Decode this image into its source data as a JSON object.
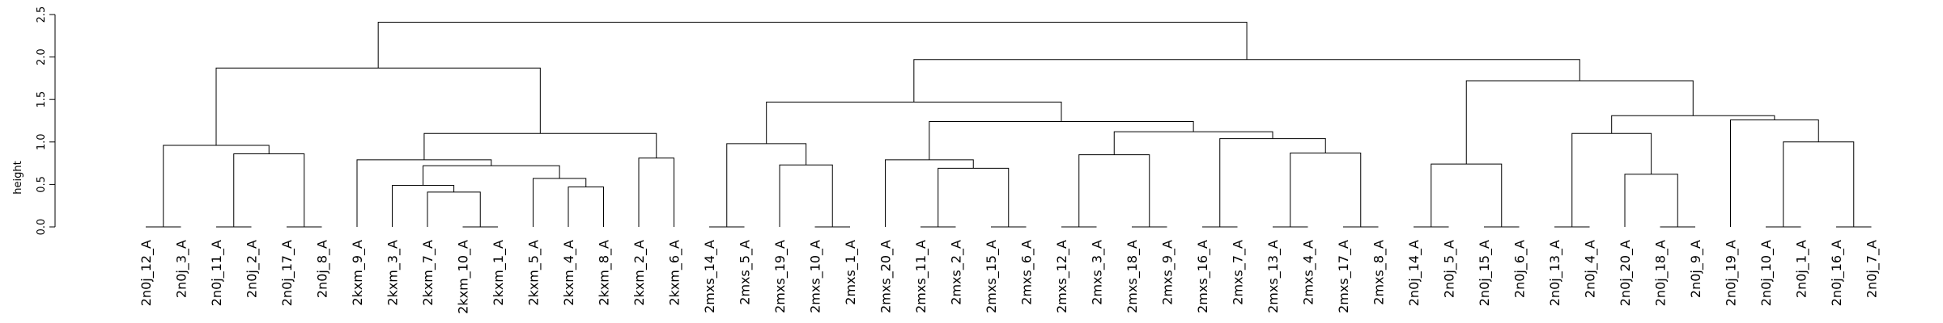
{
  "chart_data": {
    "type": "dendrogram",
    "title": "",
    "xlabel": "",
    "ylabel": "height",
    "ylim": [
      0,
      2.5
    ],
    "yticks": [
      0.0,
      0.5,
      1.0,
      1.5,
      2.0,
      2.5
    ],
    "ytick_labels": [
      "0.0",
      "0.5",
      "1.0",
      "1.5",
      "2.0",
      "2.5"
    ],
    "leaves": [
      "2n0j_12_A",
      "2n0j_3_A",
      "2n0j_11_A",
      "2n0j_2_A",
      "2n0j_17_A",
      "2n0j_8_A",
      "2kxm_9_A",
      "2kxm_3_A",
      "2kxm_7_A",
      "2kxm_10_A",
      "2kxm_1_A",
      "2kxm_5_A",
      "2kxm_4_A",
      "2kxm_8_A",
      "2kxm_2_A",
      "2kxm_6_A",
      "2mxs_14_A",
      "2mxs_5_A",
      "2mxs_19_A",
      "2mxs_10_A",
      "2mxs_1_A",
      "2mxs_20_A",
      "2mxs_11_A",
      "2mxs_2_A",
      "2mxs_15_A",
      "2mxs_6_A",
      "2mxs_12_A",
      "2mxs_3_A",
      "2mxs_18_A",
      "2mxs_9_A",
      "2mxs_16_A",
      "2mxs_7_A",
      "2mxs_13_A",
      "2mxs_4_A",
      "2mxs_17_A",
      "2mxs_8_A",
      "2n0j_14_A",
      "2n0j_5_A",
      "2n0j_15_A",
      "2n0j_6_A",
      "2n0j_13_A",
      "2n0j_4_A",
      "2n0j_20_A",
      "2n0j_18_A",
      "2n0j_9_A",
      "2n0j_19_A",
      "2n0j_10_A",
      "2n0j_1_A",
      "2n0j_16_A",
      "2n0j_7_A"
    ],
    "merges": [
      {
        "left": "2n0j_12_A",
        "right": "2n0j_3_A",
        "height": 0.0
      },
      {
        "left": "2n0j_11_A",
        "right": "2n0j_2_A",
        "height": 0.0
      },
      {
        "left": "2n0j_17_A",
        "right": "2n0j_8_A",
        "height": 0.0
      },
      {
        "left": "2kxm_10_A",
        "right": "2kxm_1_A",
        "height": 0.0
      },
      {
        "left": "2mxs_14_A",
        "right": "2mxs_5_A",
        "height": 0.0
      },
      {
        "left": "2mxs_10_A",
        "right": "2mxs_1_A",
        "height": 0.0
      },
      {
        "left": "2mxs_11_A",
        "right": "2mxs_2_A",
        "height": 0.0
      },
      {
        "left": "2mxs_15_A",
        "right": "2mxs_6_A",
        "height": 0.0
      },
      {
        "left": "2mxs_12_A",
        "right": "2mxs_3_A",
        "height": 0.0
      },
      {
        "left": "2mxs_18_A",
        "right": "2mxs_9_A",
        "height": 0.0
      },
      {
        "left": "2mxs_16_A",
        "right": "2mxs_7_A",
        "height": 0.0
      },
      {
        "left": "2mxs_13_A",
        "right": "2mxs_4_A",
        "height": 0.0
      },
      {
        "left": "2mxs_17_A",
        "right": "2mxs_8_A",
        "height": 0.0
      },
      {
        "left": "2n0j_14_A",
        "right": "2n0j_5_A",
        "height": 0.0
      },
      {
        "left": "2n0j_15_A",
        "right": "2n0j_6_A",
        "height": 0.0
      },
      {
        "left": "2n0j_13_A",
        "right": "2n0j_4_A",
        "height": 0.0
      },
      {
        "left": "2n0j_18_A",
        "right": "2n0j_9_A",
        "height": 0.0
      },
      {
        "left": "2n0j_10_A",
        "right": "2n0j_1_A",
        "height": 0.0
      },
      {
        "left": "2n0j_16_A",
        "right": "2n0j_7_A",
        "height": 0.0
      },
      {
        "left": "2kxm_7_A",
        "right": {
          "left": "2kxm_10_A",
          "right": "2kxm_1_A"
        },
        "height": 0.41
      },
      {
        "left": "2kxm_4_A",
        "right": "2kxm_8_A",
        "height": 0.47
      },
      {
        "left": "2kxm_3_A",
        "right": {
          "left": "2kxm_7_A",
          "right": {
            "left": "2kxm_10_A",
            "right": "2kxm_1_A"
          }
        },
        "height": 0.49
      },
      {
        "left": "2kxm_5_A",
        "right": {
          "left": "2kxm_4_A",
          "right": "2kxm_8_A"
        },
        "height": 0.57
      },
      {
        "left": "2n0j_20_A",
        "right": {
          "left": "2n0j_18_A",
          "right": "2n0j_9_A"
        },
        "height": 0.62
      },
      {
        "left": "2mxs_20_A",
        "right": "2mxs_11..6",
        "height": 0.79
      }
    ]
  }
}
